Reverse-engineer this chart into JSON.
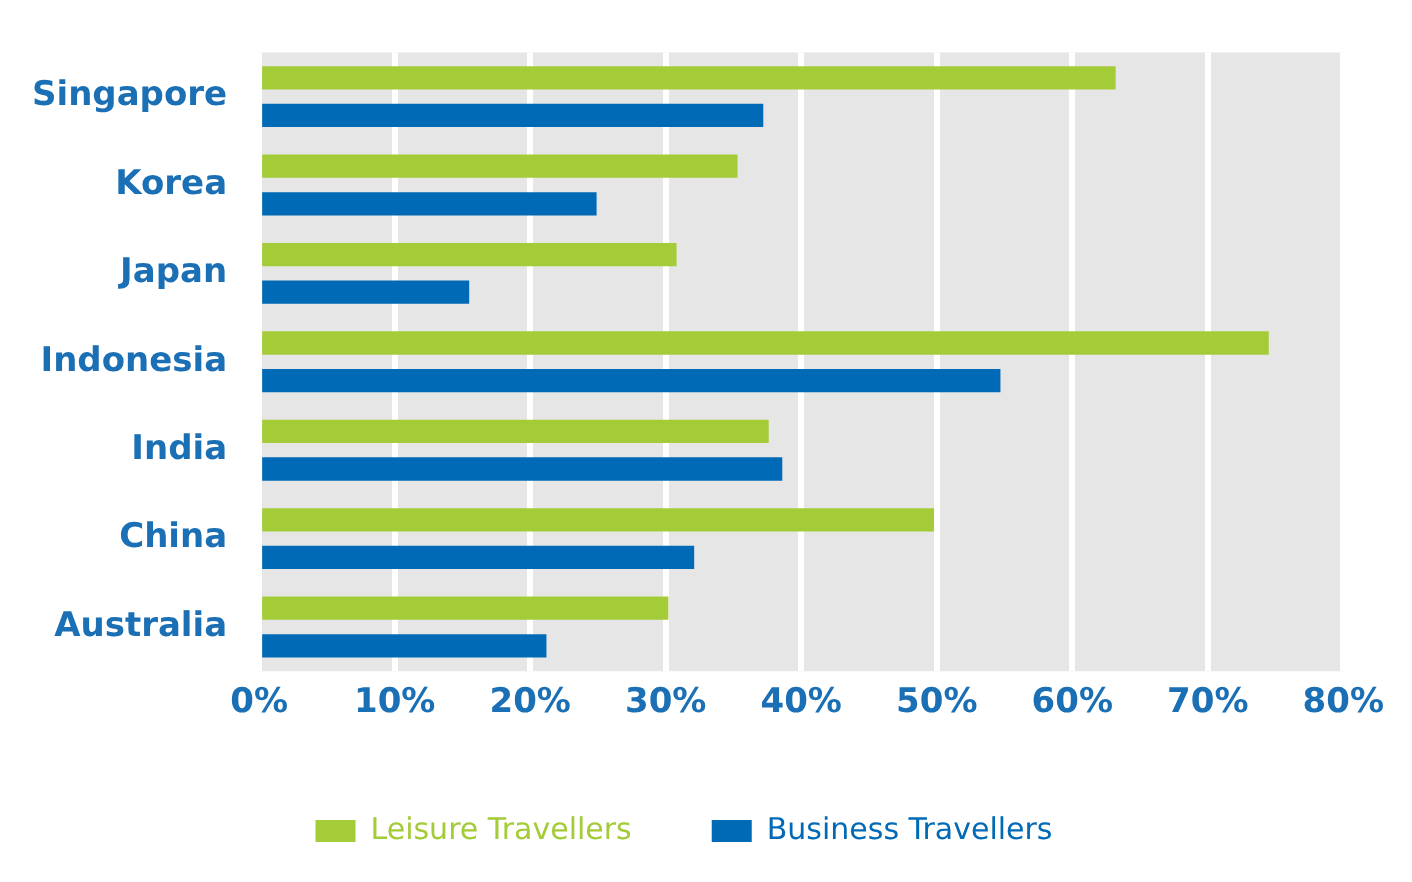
{
  "chart_data": {
    "type": "bar",
    "orientation": "horizontal",
    "categories": [
      "Singapore",
      "Korea",
      "Japan",
      "Indonesia",
      "India",
      "China",
      "Australia"
    ],
    "series": [
      {
        "name": "Leisure Travellers",
        "color": "#a4cb38",
        "values": [
          63.2,
          35.3,
          30.8,
          74.5,
          37.6,
          49.8,
          30.2
        ]
      },
      {
        "name": "Business Travellers",
        "color": "#006ab6",
        "values": [
          37.2,
          24.9,
          15.5,
          54.7,
          38.6,
          32.1,
          21.2
        ]
      }
    ],
    "xlim": [
      0,
      80
    ],
    "xticks": [
      {
        "value": 0,
        "label": "0%"
      },
      {
        "value": 10,
        "label": "10%"
      },
      {
        "value": 20,
        "label": "20%"
      },
      {
        "value": 30,
        "label": "30%"
      },
      {
        "value": 40,
        "label": "40%"
      },
      {
        "value": 50,
        "label": "50%"
      },
      {
        "value": 60,
        "label": "60%"
      },
      {
        "value": 70,
        "label": "70%"
      },
      {
        "value": 80,
        "label": "80%"
      }
    ],
    "grid": "x",
    "legend": "bottom"
  }
}
